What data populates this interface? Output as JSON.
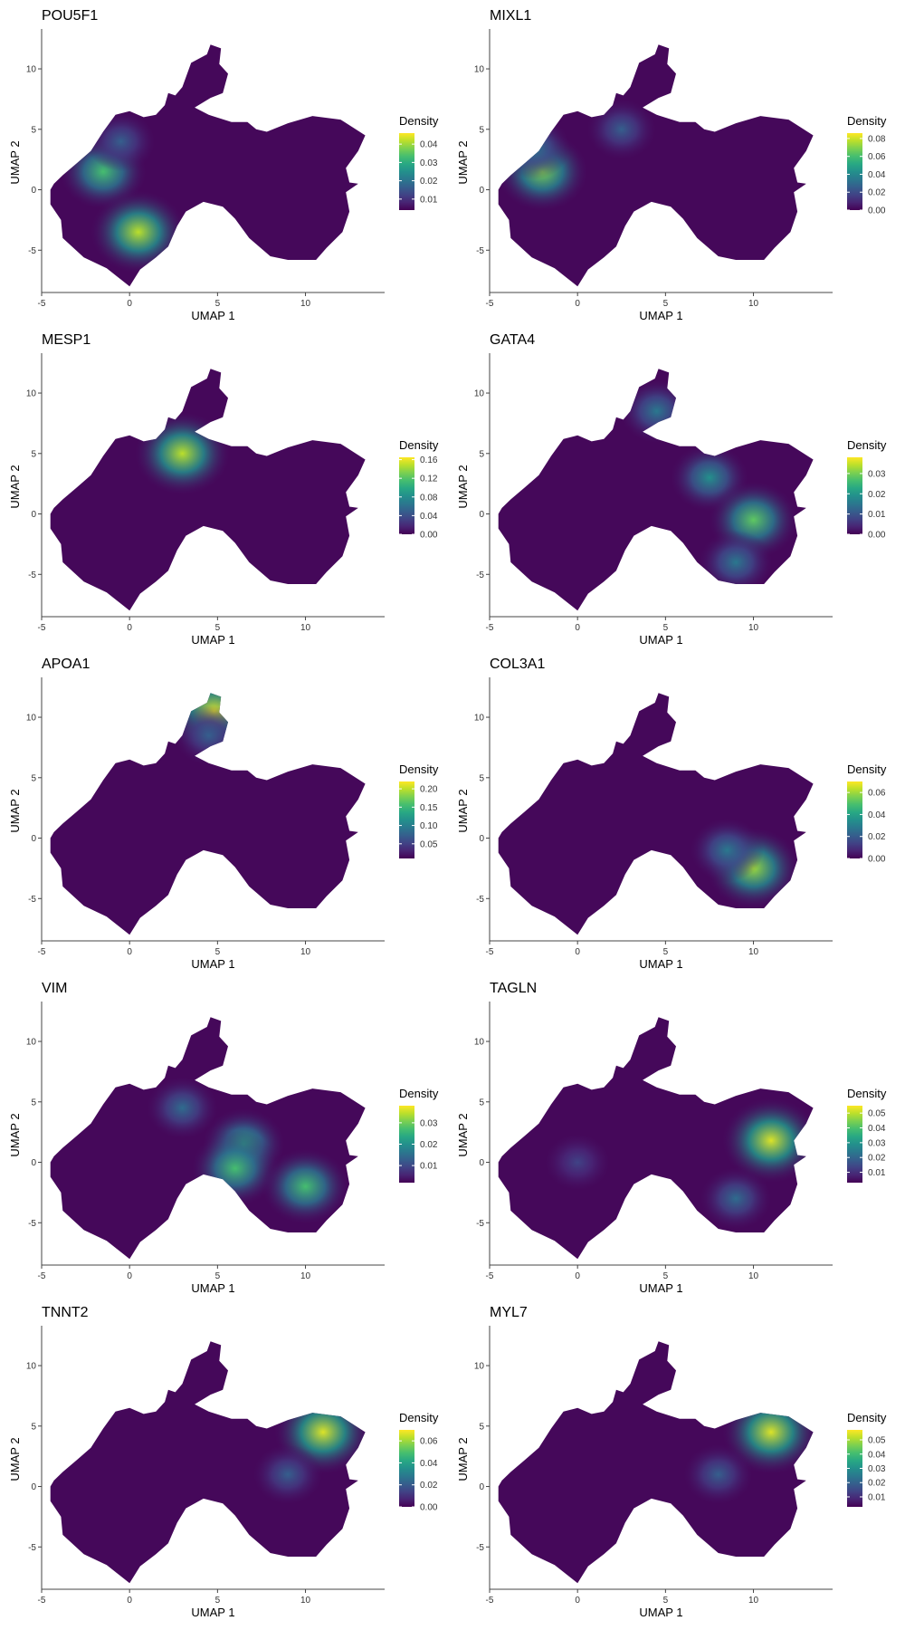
{
  "axis_labels": {
    "x": "UMAP 1",
    "y": "UMAP 2"
  },
  "legend_title": "Density",
  "x_ticks": [
    "-5",
    "0",
    "5",
    "10"
  ],
  "y_ticks": [
    "10",
    "5",
    "0",
    "-5"
  ],
  "colors": {
    "low": "#440154",
    "mid1": "#3b528b",
    "mid2": "#21908c",
    "mid3": "#5dc963",
    "high": "#fde725",
    "axis": "#444444"
  },
  "chart_data": [
    {
      "type": "heatmap",
      "title": "POU5F1",
      "xlabel": "UMAP 1",
      "ylabel": "UMAP 2",
      "xlim": [
        -5,
        14.5
      ],
      "ylim": [
        -8.5,
        13
      ],
      "legend": {
        "title": "Density",
        "ticks": [
          "0.04",
          "0.03",
          "0.02",
          "0.01"
        ],
        "range": [
          0.004,
          0.046
        ]
      },
      "hotspots": [
        {
          "x": -1.5,
          "y": 1.5,
          "intensity": 0.7
        },
        {
          "x": 0.5,
          "y": -3.5,
          "intensity": 0.9
        },
        {
          "x": -0.5,
          "y": 4.0,
          "intensity": 0.3
        }
      ]
    },
    {
      "type": "heatmap",
      "title": "MIXL1",
      "xlabel": "UMAP 1",
      "ylabel": "UMAP 2",
      "xlim": [
        -5,
        14.5
      ],
      "ylim": [
        -8.5,
        13
      ],
      "legend": {
        "title": "Density",
        "ticks": [
          "0.08",
          "0.06",
          "0.04",
          "0.02",
          "0.00"
        ],
        "range": [
          0,
          0.086
        ]
      },
      "hotspots": [
        {
          "x": -2.0,
          "y": 1.5,
          "intensity": 0.8
        },
        {
          "x": -2.5,
          "y": 3.5,
          "intensity": 0.4
        },
        {
          "x": 2.5,
          "y": 5.0,
          "intensity": 0.3
        }
      ]
    },
    {
      "type": "heatmap",
      "title": "MESP1",
      "xlabel": "UMAP 1",
      "ylabel": "UMAP 2",
      "xlim": [
        -5,
        14.5
      ],
      "ylim": [
        -8.5,
        13
      ],
      "legend": {
        "title": "Density",
        "ticks": [
          "0.16",
          "0.12",
          "0.08",
          "0.04",
          "0.00"
        ],
        "range": [
          0,
          0.165
        ]
      },
      "hotspots": [
        {
          "x": 3.0,
          "y": 5.0,
          "intensity": 0.9
        }
      ]
    },
    {
      "type": "heatmap",
      "title": "GATA4",
      "xlabel": "UMAP 1",
      "ylabel": "UMAP 2",
      "xlim": [
        -5,
        14.5
      ],
      "ylim": [
        -8.5,
        13
      ],
      "legend": {
        "title": "Density",
        "ticks": [
          "0.03",
          "0.02",
          "0.01",
          "0.00"
        ],
        "range": [
          0,
          0.038
        ]
      },
      "hotspots": [
        {
          "x": 4.5,
          "y": 8.5,
          "intensity": 0.4
        },
        {
          "x": 7.5,
          "y": 3.0,
          "intensity": 0.5
        },
        {
          "x": 10.0,
          "y": -0.5,
          "intensity": 0.75
        },
        {
          "x": 9.0,
          "y": -4.0,
          "intensity": 0.4
        }
      ]
    },
    {
      "type": "heatmap",
      "title": "APOA1",
      "xlabel": "UMAP 1",
      "ylabel": "UMAP 2",
      "xlim": [
        -5,
        14.5
      ],
      "ylim": [
        -8.5,
        13
      ],
      "legend": {
        "title": "Density",
        "ticks": [
          "0.20",
          "0.15",
          "0.10",
          "0.05"
        ],
        "range": [
          0.01,
          0.22
        ]
      },
      "hotspots": [
        {
          "x": 4.8,
          "y": 10.5,
          "intensity": 0.95
        },
        {
          "x": 4.5,
          "y": 8.5,
          "intensity": 0.3
        }
      ]
    },
    {
      "type": "heatmap",
      "title": "COL3A1",
      "xlabel": "UMAP 1",
      "ylabel": "UMAP 2",
      "xlim": [
        -5,
        14.5
      ],
      "ylim": [
        -8.5,
        13
      ],
      "legend": {
        "title": "Density",
        "ticks": [
          "0.06",
          "0.04",
          "0.02",
          "0.00"
        ],
        "range": [
          0,
          0.07
        ]
      },
      "hotspots": [
        {
          "x": 10.0,
          "y": -2.5,
          "intensity": 0.85
        },
        {
          "x": 8.5,
          "y": -1.0,
          "intensity": 0.4
        }
      ]
    },
    {
      "type": "heatmap",
      "title": "VIM",
      "xlabel": "UMAP 1",
      "ylabel": "UMAP 2",
      "xlim": [
        -5,
        14.5
      ],
      "ylim": [
        -8.5,
        13
      ],
      "legend": {
        "title": "Density",
        "ticks": [
          "0.03",
          "0.02",
          "0.01"
        ],
        "range": [
          0.002,
          0.038
        ]
      },
      "hotspots": [
        {
          "x": 6.5,
          "y": 1.5,
          "intensity": 0.6
        },
        {
          "x": 6.0,
          "y": -0.5,
          "intensity": 0.7
        },
        {
          "x": 10.0,
          "y": -2.0,
          "intensity": 0.7
        },
        {
          "x": 3.0,
          "y": 4.5,
          "intensity": 0.35
        }
      ]
    },
    {
      "type": "heatmap",
      "title": "TAGLN",
      "xlabel": "UMAP 1",
      "ylabel": "UMAP 2",
      "xlim": [
        -5,
        14.5
      ],
      "ylim": [
        -8.5,
        13
      ],
      "legend": {
        "title": "Density",
        "ticks": [
          "0.05",
          "0.04",
          "0.03",
          "0.02",
          "0.01"
        ],
        "range": [
          0.003,
          0.055
        ]
      },
      "hotspots": [
        {
          "x": 11.0,
          "y": 1.8,
          "intensity": 0.95
        },
        {
          "x": 9.0,
          "y": -3.0,
          "intensity": 0.35
        },
        {
          "x": 0.0,
          "y": 0.0,
          "intensity": 0.2
        }
      ]
    },
    {
      "type": "heatmap",
      "title": "TNNT2",
      "xlabel": "UMAP 1",
      "ylabel": "UMAP 2",
      "xlim": [
        -5,
        14.5
      ],
      "ylim": [
        -8.5,
        13
      ],
      "legend": {
        "title": "Density",
        "ticks": [
          "0.06",
          "0.04",
          "0.02",
          "0.00"
        ],
        "range": [
          0,
          0.07
        ]
      },
      "hotspots": [
        {
          "x": 11.0,
          "y": 4.5,
          "intensity": 0.95
        },
        {
          "x": 9.0,
          "y": 1.0,
          "intensity": 0.3
        }
      ]
    },
    {
      "type": "heatmap",
      "title": "MYL7",
      "xlabel": "UMAP 1",
      "ylabel": "UMAP 2",
      "xlim": [
        -5,
        14.5
      ],
      "ylim": [
        -8.5,
        13
      ],
      "legend": {
        "title": "Density",
        "ticks": [
          "0.05",
          "0.04",
          "0.03",
          "0.02",
          "0.01"
        ],
        "range": [
          0.003,
          0.057
        ]
      },
      "hotspots": [
        {
          "x": 11.0,
          "y": 4.5,
          "intensity": 0.95
        },
        {
          "x": 8.0,
          "y": 1.0,
          "intensity": 0.3
        }
      ]
    }
  ]
}
